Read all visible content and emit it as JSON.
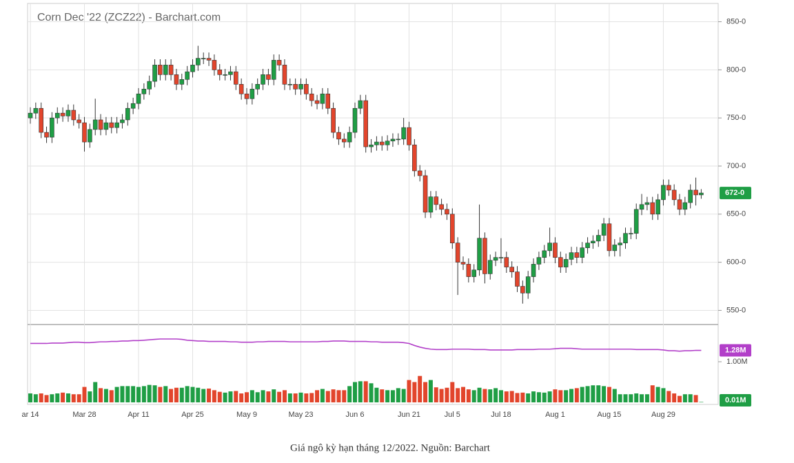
{
  "chart_data": {
    "type": "candlestick",
    "title": "Corn Dec '22 (ZCZ22) - Barchart.com",
    "caption": "Giá ngô kỳ hạn tháng 12/2022. Nguồn: Barchart",
    "categories": [
      "ar 14",
      null,
      null,
      null,
      null,
      null,
      null,
      null,
      null,
      null,
      "Mar 28",
      null,
      null,
      null,
      null,
      null,
      null,
      null,
      null,
      null,
      "Apr 11",
      null,
      null,
      null,
      null,
      null,
      null,
      null,
      null,
      null,
      "Apr 25",
      null,
      null,
      null,
      null,
      null,
      null,
      null,
      null,
      null,
      "May 9",
      null,
      null,
      null,
      null,
      null,
      null,
      null,
      null,
      null,
      "May 23",
      null,
      null,
      null,
      null,
      null,
      null,
      null,
      null,
      null,
      "Jun 6",
      null,
      null,
      null,
      null,
      null,
      null,
      null,
      null,
      null,
      "Jun 21",
      null,
      null,
      null,
      null,
      null,
      null,
      null,
      "Jul 5",
      null,
      null,
      null,
      null,
      null,
      null,
      null,
      null,
      "Jul 18",
      null,
      null,
      null,
      null,
      null,
      null,
      null,
      null,
      null,
      "Aug 1",
      null,
      null,
      null,
      null,
      null,
      null,
      null,
      null,
      null,
      "Aug 15",
      null,
      null,
      null,
      null,
      null,
      null,
      null,
      null,
      null,
      "Aug 29",
      null,
      null,
      null,
      null,
      null,
      null,
      null
    ],
    "open": [
      750,
      755,
      760,
      735,
      730,
      750,
      755,
      752,
      758,
      748,
      745,
      725,
      738,
      748,
      738,
      745,
      740,
      745,
      748,
      760,
      765,
      775,
      780,
      788,
      805,
      795,
      805,
      795,
      785,
      790,
      798,
      805,
      812,
      812,
      810,
      800,
      795,
      795,
      798,
      785,
      775,
      770,
      780,
      785,
      795,
      790,
      810,
      805,
      785,
      785,
      780,
      785,
      775,
      768,
      765,
      775,
      760,
      735,
      728,
      725,
      735,
      760,
      768,
      720,
      722,
      725,
      722,
      726,
      728,
      728,
      740,
      722,
      695,
      690,
      652,
      668,
      660,
      655,
      650,
      620,
      600,
      598,
      585,
      592,
      625,
      588,
      602,
      605,
      605,
      595,
      590,
      575,
      568,
      585,
      598,
      605,
      612,
      620,
      605,
      595,
      603,
      610,
      605,
      615,
      620,
      622,
      628,
      640,
      612,
      618,
      620,
      630,
      630,
      655,
      660,
      662,
      650,
      665,
      680,
      675,
      665,
      655,
      662,
      675,
      670
    ],
    "high": [
      761,
      766,
      766,
      741,
      756,
      761,
      761,
      764,
      764,
      754,
      751,
      744,
      770,
      754,
      751,
      751,
      751,
      754,
      766,
      771,
      781,
      786,
      794,
      811,
      811,
      811,
      811,
      801,
      796,
      804,
      811,
      825,
      818,
      818,
      816,
      806,
      801,
      804,
      804,
      791,
      781,
      786,
      791,
      801,
      801,
      816,
      816,
      811,
      791,
      791,
      791,
      791,
      781,
      774,
      781,
      781,
      766,
      741,
      734,
      741,
      766,
      774,
      774,
      728,
      731,
      731,
      732,
      734,
      734,
      750,
      746,
      728,
      701,
      696,
      674,
      674,
      666,
      661,
      656,
      626,
      606,
      604,
      598,
      660,
      631,
      608,
      611,
      625,
      611,
      601,
      596,
      581,
      591,
      604,
      611,
      618,
      636,
      626,
      611,
      609,
      616,
      616,
      621,
      626,
      628,
      634,
      646,
      646,
      624,
      626,
      636,
      636,
      661,
      671,
      668,
      668,
      671,
      686,
      686,
      681,
      671,
      668,
      681,
      688,
      676
    ],
    "low": [
      744,
      749,
      729,
      724,
      724,
      744,
      746,
      746,
      742,
      739,
      715,
      719,
      732,
      732,
      732,
      734,
      734,
      739,
      742,
      754,
      759,
      769,
      774,
      782,
      789,
      789,
      789,
      779,
      779,
      784,
      792,
      799,
      806,
      804,
      794,
      789,
      789,
      789,
      779,
      769,
      764,
      764,
      774,
      779,
      784,
      784,
      799,
      779,
      779,
      774,
      774,
      769,
      762,
      759,
      759,
      754,
      729,
      722,
      719,
      719,
      729,
      754,
      714,
      714,
      716,
      716,
      716,
      720,
      722,
      722,
      716,
      689,
      684,
      646,
      646,
      654,
      649,
      644,
      614,
      566,
      592,
      579,
      579,
      586,
      578,
      582,
      596,
      599,
      589,
      584,
      569,
      557,
      562,
      579,
      592,
      599,
      606,
      599,
      589,
      589,
      597,
      599,
      599,
      609,
      614,
      616,
      622,
      606,
      606,
      606,
      614,
      624,
      624,
      649,
      654,
      644,
      644,
      659,
      669,
      659,
      649,
      649,
      656,
      659,
      666
    ],
    "close": [
      755,
      760,
      735,
      730,
      750,
      755,
      752,
      758,
      748,
      745,
      725,
      738,
      748,
      738,
      745,
      740,
      745,
      748,
      760,
      765,
      775,
      780,
      788,
      805,
      795,
      805,
      795,
      785,
      790,
      798,
      805,
      812,
      812,
      810,
      800,
      795,
      795,
      798,
      785,
      775,
      770,
      780,
      785,
      795,
      790,
      810,
      805,
      785,
      785,
      780,
      785,
      775,
      768,
      765,
      775,
      760,
      735,
      728,
      725,
      735,
      760,
      768,
      720,
      722,
      725,
      722,
      726,
      728,
      728,
      740,
      722,
      695,
      690,
      652,
      668,
      660,
      655,
      650,
      620,
      600,
      598,
      585,
      592,
      625,
      588,
      602,
      605,
      605,
      595,
      590,
      575,
      568,
      585,
      598,
      605,
      612,
      620,
      605,
      595,
      603,
      610,
      605,
      615,
      620,
      622,
      628,
      640,
      612,
      618,
      620,
      630,
      630,
      655,
      660,
      662,
      650,
      665,
      680,
      675,
      665,
      655,
      662,
      675,
      670,
      672
    ],
    "volume": [
      0.22,
      0.2,
      0.22,
      0.18,
      0.2,
      0.22,
      0.24,
      0.22,
      0.2,
      0.2,
      0.38,
      0.27,
      0.5,
      0.35,
      0.33,
      0.3,
      0.38,
      0.4,
      0.4,
      0.4,
      0.38,
      0.4,
      0.43,
      0.42,
      0.38,
      0.4,
      0.33,
      0.36,
      0.36,
      0.4,
      0.38,
      0.36,
      0.33,
      0.34,
      0.3,
      0.26,
      0.24,
      0.27,
      0.28,
      0.22,
      0.25,
      0.3,
      0.25,
      0.3,
      0.27,
      0.32,
      0.26,
      0.3,
      0.22,
      0.22,
      0.24,
      0.22,
      0.23,
      0.3,
      0.33,
      0.28,
      0.32,
      0.3,
      0.3,
      0.4,
      0.5,
      0.52,
      0.52,
      0.47,
      0.36,
      0.32,
      0.3,
      0.3,
      0.35,
      0.33,
      0.55,
      0.5,
      0.65,
      0.5,
      0.55,
      0.37,
      0.33,
      0.36,
      0.5,
      0.35,
      0.38,
      0.32,
      0.3,
      0.36,
      0.33,
      0.32,
      0.35,
      0.3,
      0.27,
      0.28,
      0.23,
      0.24,
      0.22,
      0.27,
      0.25,
      0.24,
      0.27,
      0.32,
      0.3,
      0.3,
      0.33,
      0.35,
      0.38,
      0.4,
      0.42,
      0.42,
      0.4,
      0.38,
      0.33,
      0.2,
      0.2,
      0.2,
      0.22,
      0.2,
      0.2,
      0.42,
      0.38,
      0.35,
      0.28,
      0.22,
      0.16,
      0.2,
      0.2,
      0.18,
      0.01
    ],
    "open_interest": [
      1.45,
      1.45,
      1.45,
      1.45,
      1.46,
      1.46,
      1.46,
      1.47,
      1.48,
      1.48,
      1.47,
      1.47,
      1.48,
      1.49,
      1.49,
      1.5,
      1.5,
      1.51,
      1.51,
      1.52,
      1.52,
      1.53,
      1.54,
      1.55,
      1.56,
      1.56,
      1.56,
      1.56,
      1.55,
      1.53,
      1.52,
      1.51,
      1.51,
      1.5,
      1.5,
      1.5,
      1.5,
      1.49,
      1.49,
      1.48,
      1.48,
      1.48,
      1.49,
      1.49,
      1.5,
      1.5,
      1.5,
      1.5,
      1.49,
      1.49,
      1.49,
      1.49,
      1.49,
      1.49,
      1.5,
      1.5,
      1.51,
      1.51,
      1.51,
      1.5,
      1.5,
      1.5,
      1.5,
      1.49,
      1.49,
      1.48,
      1.48,
      1.48,
      1.48,
      1.47,
      1.45,
      1.4,
      1.36,
      1.33,
      1.31,
      1.3,
      1.3,
      1.3,
      1.31,
      1.31,
      1.31,
      1.31,
      1.3,
      1.3,
      1.3,
      1.29,
      1.29,
      1.29,
      1.29,
      1.29,
      1.3,
      1.3,
      1.3,
      1.3,
      1.31,
      1.31,
      1.31,
      1.32,
      1.33,
      1.33,
      1.33,
      1.32,
      1.31,
      1.31,
      1.31,
      1.31,
      1.31,
      1.31,
      1.31,
      1.31,
      1.31,
      1.31,
      1.3,
      1.3,
      1.3,
      1.3,
      1.3,
      1.29,
      1.27,
      1.27,
      1.26,
      1.27,
      1.27,
      1.28,
      1.28
    ],
    "up_color": "#1f9e45",
    "down_color": "#e2452c",
    "oi_color": "#b23fc9",
    "ylim": [
      536,
      869
    ],
    "yticks": [
      {
        "value": 550,
        "label": "550-0"
      },
      {
        "value": 600,
        "label": "600-0"
      },
      {
        "value": 650,
        "label": "650-0"
      },
      {
        "value": 700,
        "label": "700-0"
      },
      {
        "value": 750,
        "label": "750-0"
      },
      {
        "value": 800,
        "label": "800-0"
      },
      {
        "value": 850,
        "label": "850-0"
      }
    ],
    "y2lim": [
      0,
      1.95
    ],
    "y2ticks": [
      {
        "value": 1,
        "label": "1.00M"
      }
    ],
    "last_price_label": "672-0",
    "open_interest_label": "1.28M",
    "volume_label": "0.01M",
    "grid": true
  }
}
